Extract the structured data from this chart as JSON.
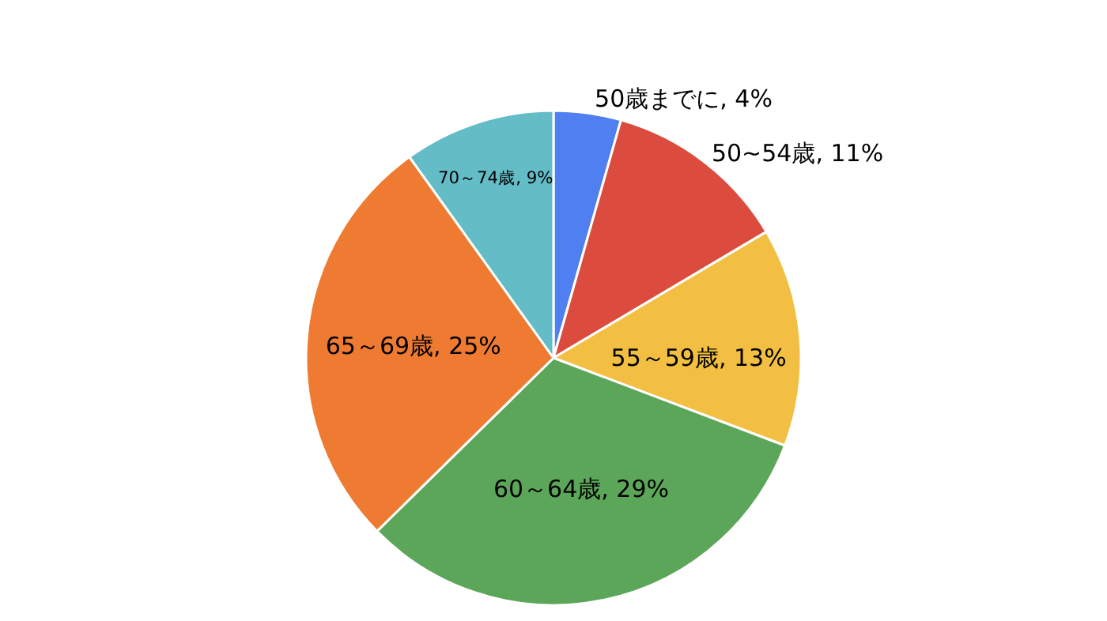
{
  "chart_data": {
    "type": "pie",
    "categories": [
      "50歳までに",
      "50~54歳",
      "55～59歳",
      "60～64歳",
      "65～69歳",
      "70～74歳"
    ],
    "values": [
      4,
      11,
      13,
      29,
      25,
      9
    ],
    "value_labels": [
      "4%",
      "11%",
      "13%",
      "29%",
      "25%",
      "9%"
    ],
    "colors": [
      "#4f7ff0",
      "#dc4c3e",
      "#f2bf42",
      "#5ca65a",
      "#ee7b31",
      "#63bcc6"
    ]
  }
}
